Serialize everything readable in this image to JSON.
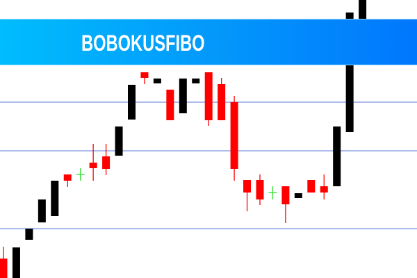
{
  "banner": {
    "title": "BOBOKUSFIBO",
    "gradient": [
      "#00bdfd",
      "#0077fd"
    ]
  },
  "chart_data": {
    "type": "candlestick",
    "title": "",
    "xlabel": "",
    "ylabel": "",
    "ylim": [
      100,
      140
    ],
    "grid": false,
    "colors": {
      "bull": "#000000",
      "bear": "#ff0000",
      "doji": "#33dd33",
      "level": "#8fa6e6"
    },
    "levels": [
      125.3,
      118.3,
      107.1
    ],
    "candles": [
      {
        "o": 102.8,
        "h": 104.5,
        "l": 100,
        "c": 100
      },
      {
        "o": 100,
        "h": 104.4,
        "l": 100,
        "c": 104.4
      },
      {
        "o": 105.5,
        "h": 107.1,
        "l": 105.5,
        "c": 107.1
      },
      {
        "o": 108,
        "h": 111.3,
        "l": 108,
        "c": 111.3
      },
      {
        "o": 108.9,
        "h": 114,
        "l": 108.9,
        "c": 114
      },
      {
        "o": 114.9,
        "h": 114.9,
        "l": 113.1,
        "c": 114
      },
      {
        "o": 114.9,
        "h": 115.8,
        "l": 114,
        "c": 114.9
      },
      {
        "o": 116.6,
        "h": 119.3,
        "l": 114,
        "c": 115.8
      },
      {
        "o": 117.5,
        "h": 119.3,
        "l": 114.8,
        "c": 115.7
      },
      {
        "o": 117.6,
        "h": 121.8,
        "l": 117.6,
        "c": 121.8
      },
      {
        "o": 122.8,
        "h": 127.8,
        "l": 122.8,
        "c": 127.8
      },
      {
        "o": 129.6,
        "h": 129.6,
        "l": 127.9,
        "c": 128.8
      },
      {
        "o": 128,
        "h": 128.7,
        "l": 128,
        "c": 128.7
      },
      {
        "o": 127.1,
        "h": 127.1,
        "l": 122.7,
        "c": 122.7
      },
      {
        "o": 123.7,
        "h": 128.7,
        "l": 123.7,
        "c": 128.7
      },
      {
        "o": 128,
        "h": 128.7,
        "l": 128,
        "c": 128.7
      },
      {
        "o": 129.6,
        "h": 129.6,
        "l": 121.9,
        "c": 122.7
      },
      {
        "o": 127.9,
        "h": 128.8,
        "l": 122.7,
        "c": 122.7
      },
      {
        "o": 125.3,
        "h": 126.2,
        "l": 114,
        "c": 115.7
      },
      {
        "o": 114.1,
        "h": 114.1,
        "l": 109.6,
        "c": 112.3
      },
      {
        "o": 114.1,
        "h": 114.9,
        "l": 110.5,
        "c": 111.3
      },
      {
        "o": 112.3,
        "h": 113.2,
        "l": 111.3,
        "c": 112.3
      },
      {
        "o": 113.2,
        "h": 113.2,
        "l": 107.9,
        "c": 110.6
      },
      {
        "o": 111.5,
        "h": 112.2,
        "l": 111.5,
        "c": 112.2
      },
      {
        "o": 114.1,
        "h": 114.1,
        "l": 112.3,
        "c": 112.3
      },
      {
        "o": 113.2,
        "h": 114.9,
        "l": 111.3,
        "c": 112.3
      },
      {
        "o": 113.2,
        "h": 121.8,
        "l": 113.2,
        "c": 121.8
      },
      {
        "o": 121,
        "h": 138.2,
        "l": 121,
        "c": 138.2
      },
      {
        "o": 137.3,
        "h": 141,
        "l": 137.3,
        "c": 141
      }
    ]
  }
}
